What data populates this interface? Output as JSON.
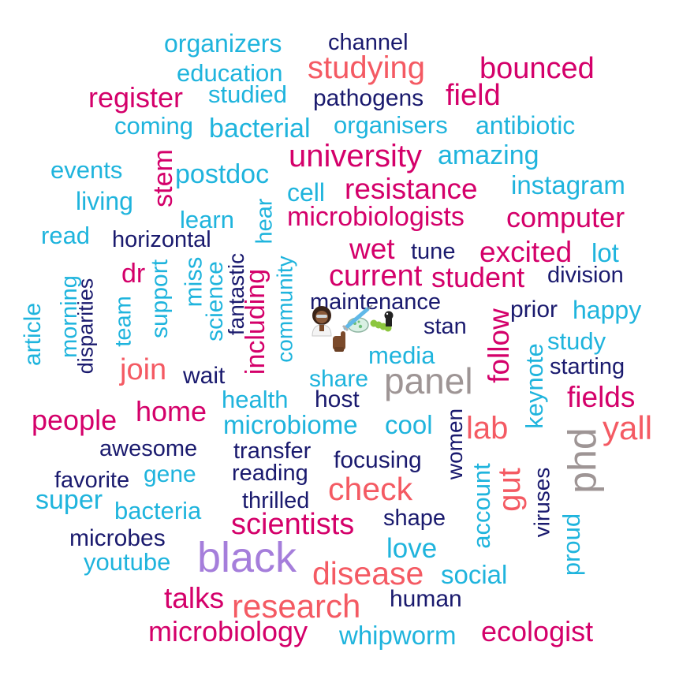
{
  "palette": {
    "magenta": "#d4006a",
    "coral": "#f45a63",
    "navy": "#1a1a6e",
    "cyan": "#1fb4dd",
    "grey": "#9e9595",
    "lavender": "#a57edb"
  },
  "words": [
    {
      "text": "organizers",
      "color": "cyan"
    },
    {
      "text": "channel",
      "color": "navy"
    },
    {
      "text": "studying",
      "color": "coral"
    },
    {
      "text": "bounced",
      "color": "magenta"
    },
    {
      "text": "education",
      "color": "cyan"
    },
    {
      "text": "register",
      "color": "magenta"
    },
    {
      "text": "studied",
      "color": "cyan"
    },
    {
      "text": "pathogens",
      "color": "navy"
    },
    {
      "text": "field",
      "color": "magenta"
    },
    {
      "text": "coming",
      "color": "cyan"
    },
    {
      "text": "bacterial",
      "color": "cyan"
    },
    {
      "text": "organisers",
      "color": "cyan"
    },
    {
      "text": "antibiotic",
      "color": "cyan"
    },
    {
      "text": "university",
      "color": "magenta"
    },
    {
      "text": "amazing",
      "color": "cyan"
    },
    {
      "text": "events",
      "color": "cyan"
    },
    {
      "text": "stem",
      "color": "magenta"
    },
    {
      "text": "postdoc",
      "color": "cyan"
    },
    {
      "text": "cell",
      "color": "cyan"
    },
    {
      "text": "resistance",
      "color": "magenta"
    },
    {
      "text": "instagram",
      "color": "cyan"
    },
    {
      "text": "living",
      "color": "cyan"
    },
    {
      "text": "hear",
      "color": "cyan"
    },
    {
      "text": "learn",
      "color": "cyan"
    },
    {
      "text": "microbiologists",
      "color": "magenta"
    },
    {
      "text": "computer",
      "color": "magenta"
    },
    {
      "text": "read",
      "color": "cyan"
    },
    {
      "text": "horizontal",
      "color": "navy"
    },
    {
      "text": "wet",
      "color": "magenta"
    },
    {
      "text": "tune",
      "color": "navy"
    },
    {
      "text": "excited",
      "color": "magenta"
    },
    {
      "text": "lot",
      "color": "cyan"
    },
    {
      "text": "dr",
      "color": "magenta"
    },
    {
      "text": "support",
      "color": "cyan"
    },
    {
      "text": "miss",
      "color": "cyan"
    },
    {
      "text": "science",
      "color": "cyan"
    },
    {
      "text": "fantastic",
      "color": "navy"
    },
    {
      "text": "including",
      "color": "magenta"
    },
    {
      "text": "community",
      "color": "cyan"
    },
    {
      "text": "current",
      "color": "magenta"
    },
    {
      "text": "student",
      "color": "magenta"
    },
    {
      "text": "division",
      "color": "navy"
    },
    {
      "text": "article",
      "color": "cyan"
    },
    {
      "text": "morning",
      "color": "cyan"
    },
    {
      "text": "disparities",
      "color": "navy"
    },
    {
      "text": "team",
      "color": "cyan"
    },
    {
      "text": "maintenance",
      "color": "navy"
    },
    {
      "text": "follow",
      "color": "magenta"
    },
    {
      "text": "prior",
      "color": "navy"
    },
    {
      "text": "happy",
      "color": "cyan"
    },
    {
      "text": "stan",
      "color": "navy"
    },
    {
      "text": "study",
      "color": "cyan"
    },
    {
      "text": "media",
      "color": "cyan"
    },
    {
      "text": "keynote",
      "color": "cyan"
    },
    {
      "text": "join",
      "color": "coral"
    },
    {
      "text": "wait",
      "color": "navy"
    },
    {
      "text": "share",
      "color": "cyan"
    },
    {
      "text": "panel",
      "color": "grey"
    },
    {
      "text": "starting",
      "color": "navy"
    },
    {
      "text": "fields",
      "color": "magenta"
    },
    {
      "text": "health",
      "color": "cyan"
    },
    {
      "text": "host",
      "color": "navy"
    },
    {
      "text": "phd",
      "color": "grey"
    },
    {
      "text": "people",
      "color": "magenta"
    },
    {
      "text": "home",
      "color": "magenta"
    },
    {
      "text": "microbiome",
      "color": "cyan"
    },
    {
      "text": "cool",
      "color": "cyan"
    },
    {
      "text": "women",
      "color": "navy"
    },
    {
      "text": "lab",
      "color": "coral"
    },
    {
      "text": "yall",
      "color": "coral"
    },
    {
      "text": "awesome",
      "color": "navy"
    },
    {
      "text": "transfer",
      "color": "navy"
    },
    {
      "text": "focusing",
      "color": "navy"
    },
    {
      "text": "account",
      "color": "cyan"
    },
    {
      "text": "gut",
      "color": "coral"
    },
    {
      "text": "viruses",
      "color": "navy"
    },
    {
      "text": "favorite",
      "color": "navy"
    },
    {
      "text": "gene",
      "color": "cyan"
    },
    {
      "text": "reading",
      "color": "navy"
    },
    {
      "text": "check",
      "color": "coral"
    },
    {
      "text": "super",
      "color": "cyan"
    },
    {
      "text": "thrilled",
      "color": "navy"
    },
    {
      "text": "bacteria",
      "color": "cyan"
    },
    {
      "text": "scientists",
      "color": "magenta"
    },
    {
      "text": "shape",
      "color": "navy"
    },
    {
      "text": "proud",
      "color": "cyan"
    },
    {
      "text": "microbes",
      "color": "navy"
    },
    {
      "text": "black",
      "color": "lavender"
    },
    {
      "text": "love",
      "color": "cyan"
    },
    {
      "text": "youtube",
      "color": "cyan"
    },
    {
      "text": "disease",
      "color": "coral"
    },
    {
      "text": "social",
      "color": "cyan"
    },
    {
      "text": "talks",
      "color": "magenta"
    },
    {
      "text": "research",
      "color": "coral"
    },
    {
      "text": "human",
      "color": "navy"
    },
    {
      "text": "microbiology",
      "color": "magenta"
    },
    {
      "text": "whipworm",
      "color": "cyan"
    },
    {
      "text": "ecologist",
      "color": "magenta"
    }
  ],
  "emoji_cluster": {
    "icons": [
      "woman-scientist-icon",
      "petri-dish-icon",
      "syringe-icon",
      "caterpillar-icon",
      "pointing-hand-icon"
    ]
  }
}
